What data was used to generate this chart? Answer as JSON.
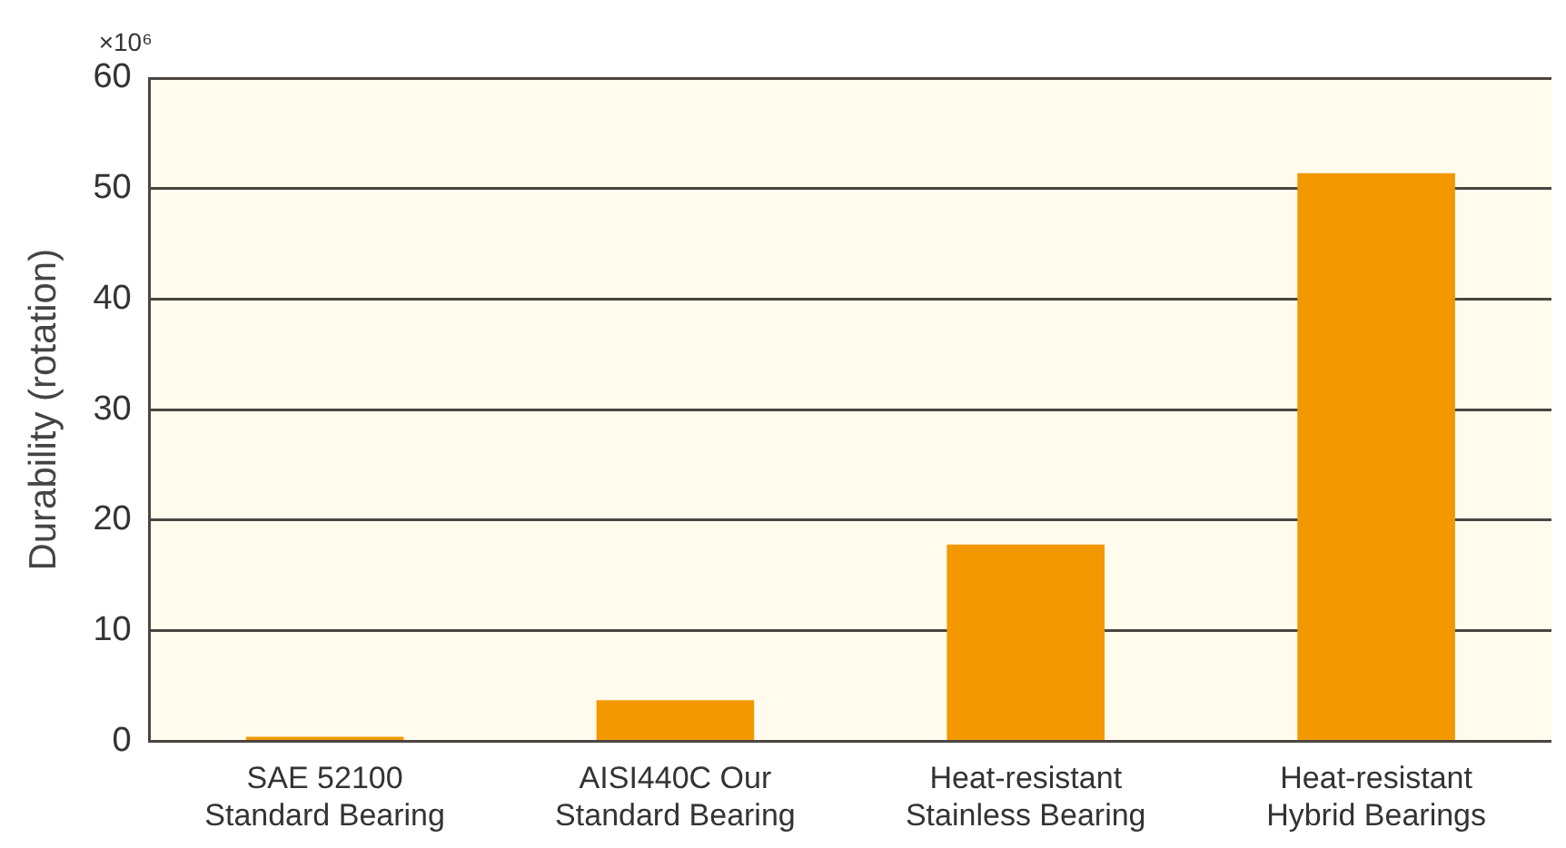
{
  "chart_data": {
    "type": "bar",
    "ylabel": "Durability (rotation)",
    "categories": [
      "SAE 52100\nStandard Bearing",
      "AISI440C Our\nStandard Bearing",
      "Heat-resistant\nStainless Bearing",
      "Heat-resistant\nHybrid Bearings"
    ],
    "values": [
      0.4,
      3.7,
      17.8,
      51.4
    ],
    "color": "#f39800",
    "ylim": [
      0,
      60
    ],
    "yticks": [
      0,
      10,
      20,
      30,
      40,
      50,
      60
    ],
    "grid": "y",
    "legend": false,
    "annotations": [
      "×10⁶"
    ]
  }
}
